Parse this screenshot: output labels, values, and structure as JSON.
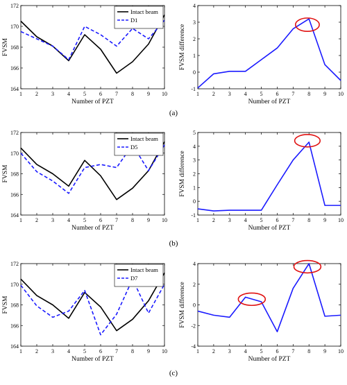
{
  "panels": [
    {
      "label": "(a)",
      "left": {
        "type": "line",
        "ylabel": "FVSM",
        "xlabel": "Number of PZT",
        "x": [
          1,
          2,
          3,
          4,
          5,
          6,
          7,
          8,
          9,
          10
        ],
        "xticks": [
          "1",
          "2",
          "3",
          "4",
          "5",
          "6",
          "7",
          "8",
          "9",
          "10"
        ],
        "ylim": [
          164,
          172
        ],
        "yticks": [
          "164",
          "166",
          "168",
          "170",
          "172"
        ],
        "series": [
          {
            "name": "Intact beam",
            "color": "#000000",
            "dash": "solid",
            "values": [
              170.5,
              169.0,
              168.1,
              166.7,
              169.2,
              167.8,
              165.5,
              166.6,
              168.3,
              171.1
            ]
          },
          {
            "name": "D1",
            "color": "#1a1aff",
            "dash": "dashed",
            "values": [
              169.5,
              168.8,
              168.1,
              166.8,
              170.0,
              169.2,
              168.1,
              169.8,
              168.8,
              170.6
            ]
          }
        ],
        "legend": "top-right"
      },
      "right": {
        "type": "line",
        "ylabel": "FVSM difference",
        "xlabel": "Number of PZT",
        "x": [
          1,
          2,
          3,
          4,
          5,
          6,
          7,
          8,
          9,
          10
        ],
        "xticks": [
          "1",
          "2",
          "3",
          "4",
          "5",
          "6",
          "7",
          "8",
          "9",
          "10"
        ],
        "ylim": [
          -1,
          4
        ],
        "yticks": [
          "-1",
          "0",
          "1",
          "2",
          "3",
          "4"
        ],
        "series": [
          {
            "color": "#1a1aff",
            "dash": "solid",
            "values": [
              -0.95,
              -0.1,
              0.05,
              0.05,
              0.75,
              1.45,
              2.6,
              3.2,
              0.45,
              -0.5
            ]
          }
        ],
        "highlights": [
          {
            "x": 7.9,
            "y": 2.85,
            "rx": 0.75,
            "ry": 0.4
          }
        ]
      }
    },
    {
      "label": "(b)",
      "left": {
        "type": "line",
        "ylabel": "FVSM",
        "xlabel": "Number of PZT",
        "x": [
          1,
          2,
          3,
          4,
          5,
          6,
          7,
          8,
          9,
          10
        ],
        "xticks": [
          "1",
          "2",
          "3",
          "4",
          "5",
          "6",
          "7",
          "8",
          "9",
          "10"
        ],
        "ylim": [
          164,
          172
        ],
        "yticks": [
          "164",
          "166",
          "168",
          "170",
          "172"
        ],
        "series": [
          {
            "name": "Intact beam",
            "color": "#000000",
            "dash": "solid",
            "values": [
              170.5,
              168.9,
              168.0,
              166.8,
              169.3,
              167.8,
              165.5,
              166.6,
              168.3,
              171.1
            ]
          },
          {
            "name": "D5",
            "color": "#1a1aff",
            "dash": "dashed",
            "values": [
              170.0,
              168.2,
              167.3,
              166.1,
              168.6,
              168.9,
              168.6,
              170.8,
              168.3,
              170.8
            ]
          }
        ],
        "legend": "top-right"
      },
      "right": {
        "type": "line",
        "ylabel": "FVSM difference",
        "xlabel": "Number of PZT",
        "x": [
          1,
          2,
          3,
          4,
          5,
          6,
          7,
          8,
          9,
          10
        ],
        "xticks": [
          "1",
          "2",
          "3",
          "4",
          "5",
          "6",
          "7",
          "8",
          "9",
          "10"
        ],
        "ylim": [
          -1,
          5
        ],
        "yticks": [
          "-1",
          "0",
          "1",
          "2",
          "3",
          "4",
          "5"
        ],
        "series": [
          {
            "color": "#1a1aff",
            "dash": "solid",
            "values": [
              -0.55,
              -0.7,
              -0.65,
              -0.65,
              -0.65,
              1.2,
              3.0,
              4.3,
              -0.3,
              -0.3
            ]
          }
        ],
        "highlights": [
          {
            "x": 7.9,
            "y": 4.4,
            "rx": 0.8,
            "ry": 0.45
          }
        ]
      }
    },
    {
      "label": "(c)",
      "left": {
        "type": "line",
        "ylabel": "FVSM",
        "xlabel": "Number of PZT",
        "x": [
          1,
          2,
          3,
          4,
          5,
          6,
          7,
          8,
          9,
          10
        ],
        "xticks": [
          "1",
          "2",
          "3",
          "4",
          "5",
          "6",
          "7",
          "8",
          "9",
          "10"
        ],
        "ylim": [
          164,
          172
        ],
        "yticks": [
          "164",
          "166",
          "168",
          "170",
          "172"
        ],
        "series": [
          {
            "name": "Intact beam",
            "color": "#000000",
            "dash": "solid",
            "values": [
              170.5,
              168.9,
              168.0,
              166.7,
              169.2,
              167.8,
              165.5,
              166.6,
              168.4,
              171.1
            ]
          },
          {
            "name": "D7",
            "color": "#1a1aff",
            "dash": "dashed",
            "values": [
              169.9,
              167.9,
              166.8,
              167.4,
              169.4,
              165.1,
              167.1,
              170.5,
              167.2,
              170.0
            ]
          }
        ],
        "legend": "top-right"
      },
      "right": {
        "type": "line",
        "ylabel": "FVSM difference",
        "xlabel": "Number of PZT",
        "x": [
          1,
          2,
          3,
          4,
          5,
          6,
          7,
          8,
          9,
          10
        ],
        "xticks": [
          "1",
          "2",
          "3",
          "4",
          "5",
          "6",
          "7",
          "8",
          "9",
          "10"
        ],
        "ylim": [
          -4,
          4
        ],
        "yticks": [
          "-4",
          "-2",
          "0",
          "2",
          "4"
        ],
        "series": [
          {
            "color": "#1a1aff",
            "dash": "solid",
            "values": [
              -0.6,
              -1.0,
              -1.2,
              0.75,
              0.3,
              -2.6,
              1.6,
              4.0,
              -1.1,
              -1.0
            ]
          }
        ],
        "highlights": [
          {
            "x": 4.4,
            "y": 0.55,
            "rx": 0.85,
            "ry": 0.6
          },
          {
            "x": 7.9,
            "y": 3.7,
            "rx": 0.85,
            "ry": 0.6
          }
        ]
      }
    }
  ]
}
